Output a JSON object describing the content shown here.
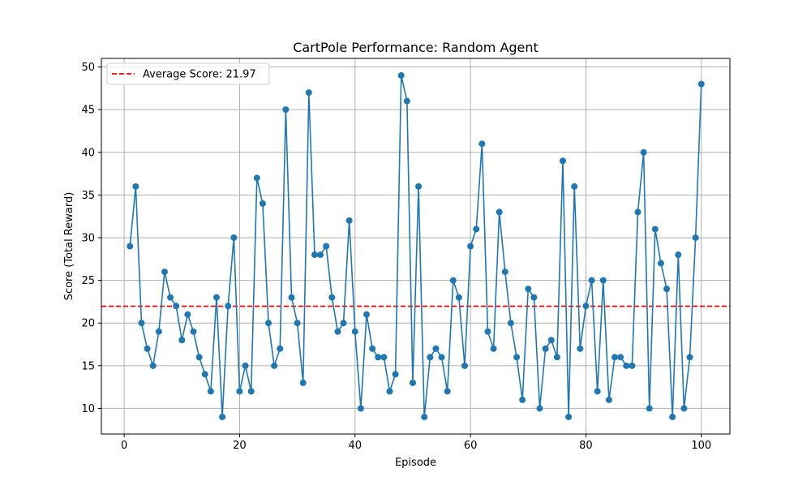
{
  "chart_data": {
    "type": "line",
    "title": "CartPole Performance: Random Agent",
    "xlabel": "Episode",
    "ylabel": "Score (Total Reward)",
    "xlim": [
      -3.95,
      104.95
    ],
    "ylim": [
      7.0,
      51.0
    ],
    "xticks": [
      0,
      20,
      40,
      60,
      80,
      100
    ],
    "yticks": [
      10,
      15,
      20,
      25,
      30,
      35,
      40,
      45,
      50
    ],
    "grid": true,
    "legend_position": "top-left",
    "series": [
      {
        "name": "",
        "color": "#1f77b4",
        "marker": "circle",
        "x": [
          1,
          2,
          3,
          4,
          5,
          6,
          7,
          8,
          9,
          10,
          11,
          12,
          13,
          14,
          15,
          16,
          17,
          18,
          19,
          20,
          21,
          22,
          23,
          24,
          25,
          26,
          27,
          28,
          29,
          30,
          31,
          32,
          33,
          34,
          35,
          36,
          37,
          38,
          39,
          40,
          41,
          42,
          43,
          44,
          45,
          46,
          47,
          48,
          49,
          50,
          51,
          52,
          53,
          54,
          55,
          56,
          57,
          58,
          59,
          60,
          61,
          62,
          63,
          64,
          65,
          66,
          67,
          68,
          69,
          70,
          71,
          72,
          73,
          74,
          75,
          76,
          77,
          78,
          79,
          80,
          81,
          82,
          83,
          84,
          85,
          86,
          87,
          88,
          89,
          90,
          91,
          92,
          93,
          94,
          95,
          96,
          97,
          98,
          99,
          100
        ],
        "values": [
          29,
          36,
          20,
          17,
          15,
          19,
          26,
          23,
          22,
          18,
          21,
          19,
          16,
          14,
          12,
          23,
          9,
          22,
          30,
          12,
          15,
          12,
          37,
          34,
          20,
          15,
          17,
          45,
          23,
          20,
          13,
          47,
          28,
          28,
          29,
          23,
          19,
          20,
          32,
          19,
          10,
          21,
          17,
          16,
          16,
          12,
          14,
          49,
          46,
          13,
          36,
          9,
          16,
          17,
          16,
          12,
          25,
          23,
          15,
          29,
          31,
          41,
          19,
          17,
          33,
          26,
          20,
          16,
          11,
          24,
          23,
          10,
          17,
          18,
          16,
          39,
          9,
          36,
          17,
          22,
          25,
          12,
          25,
          11,
          16,
          16,
          15,
          15,
          33,
          40,
          10,
          31,
          27,
          24,
          9,
          28,
          10,
          16,
          30,
          48
        ]
      }
    ],
    "reference_lines": [
      {
        "orientation": "horizontal",
        "value": 21.97,
        "color": "#ff0000",
        "style": "dashed",
        "label": "Average Score: 21.97"
      }
    ]
  }
}
